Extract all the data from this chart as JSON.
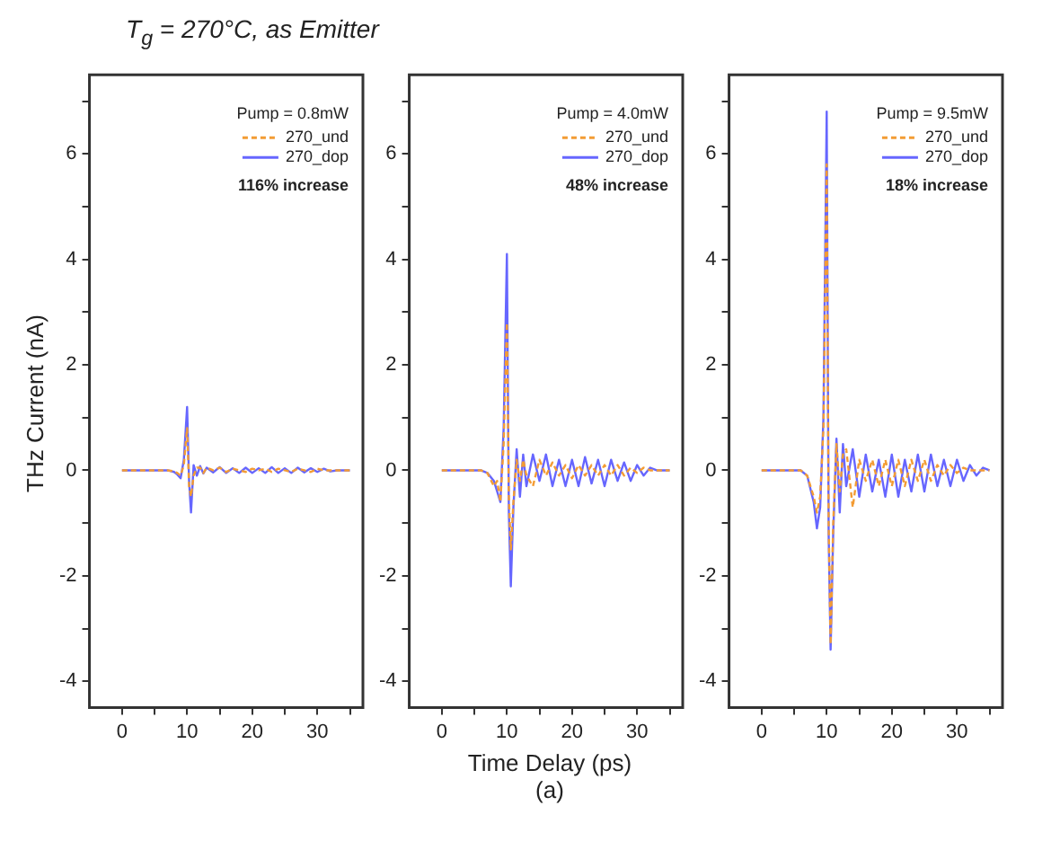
{
  "chart_data": [
    {
      "type": "line",
      "title": "T$_{g}$ = 270°C, as Emitter",
      "ylabel": "THz Current (nA)",
      "legend": "top right",
      "x": [
        0,
        2,
        4,
        6,
        7,
        8,
        8.5,
        9,
        9.5,
        10,
        10.3,
        10.6,
        11,
        11.5,
        12,
        12.5,
        13,
        14,
        15,
        16,
        17,
        18,
        19,
        20,
        21,
        22,
        23,
        24,
        25,
        26,
        27,
        28,
        29,
        30,
        31,
        32,
        33,
        34,
        35
      ],
      "series": [
        {
          "name": "270_und",
          "color": "#f39c34",
          "line_style": "dashed",
          "values": [
            0,
            0,
            0,
            0,
            0,
            -0.02,
            -0.05,
            -0.1,
            0.1,
            0.8,
            -0.3,
            -0.5,
            -0.1,
            0.05,
            0.05,
            -0.05,
            0.05,
            0,
            0.05,
            -0.03,
            0.03,
            0,
            -0.03,
            0.03,
            0,
            0.03,
            -0.03,
            0.03,
            0,
            -0.03,
            0.03,
            0,
            -0.03,
            0.03,
            0,
            0,
            0,
            0,
            0
          ]
        },
        {
          "name": "270_dop",
          "color": "#6666ff",
          "line_style": "solid",
          "values": [
            0,
            0,
            0,
            0,
            0,
            -0.03,
            -0.08,
            -0.15,
            0.2,
            1.2,
            -0.2,
            -0.8,
            0.1,
            -0.1,
            0.08,
            -0.06,
            0.05,
            -0.04,
            0.06,
            -0.05,
            0.04,
            -0.05,
            0.05,
            -0.05,
            0.04,
            -0.05,
            0.06,
            -0.05,
            0.04,
            -0.05,
            0.05,
            -0.04,
            0.04,
            -0.03,
            0.03,
            -0.02,
            0,
            0,
            0
          ]
        }
      ],
      "xlim": [
        -5,
        37
      ],
      "ylim": [
        -4.5,
        7.5
      ],
      "xticks": [
        0,
        {
          "value": 5,
          "label": null
        },
        10,
        {
          "value": 15,
          "label": null
        },
        20,
        {
          "value": 25,
          "label": null
        },
        30,
        {
          "value": 35,
          "label": null
        }
      ],
      "yticks": [
        -4,
        {
          "value": -3,
          "label": null
        },
        -2,
        {
          "value": -1,
          "label": null
        },
        0,
        {
          "value": 1,
          "label": null
        },
        2,
        {
          "value": 3,
          "label": null
        },
        4,
        {
          "value": 5,
          "label": null
        },
        6,
        {
          "value": 7,
          "label": null
        }
      ],
      "annotations": [
        "Pump = 0.8mW",
        "116% increase"
      ]
    },
    {
      "type": "line",
      "xlabel": "Time Delay (ps)",
      "legend": "top right",
      "x": [
        0,
        2,
        4,
        6,
        7,
        8,
        8.5,
        9,
        9.5,
        10,
        10.3,
        10.6,
        11,
        11.5,
        12,
        12.5,
        13,
        14,
        15,
        16,
        17,
        18,
        19,
        20,
        21,
        22,
        23,
        24,
        25,
        26,
        27,
        28,
        29,
        30,
        31,
        32,
        33,
        34,
        35
      ],
      "series": [
        {
          "name": "270_und",
          "color": "#f39c34",
          "line_style": "dashed",
          "values": [
            0,
            0,
            0,
            0,
            -0.05,
            -0.3,
            -0.2,
            -0.6,
            0.5,
            2.8,
            -0.5,
            -1.5,
            -0.6,
            0.2,
            -0.2,
            0.2,
            -0.1,
            -0.3,
            0.2,
            -0.1,
            0.15,
            -0.1,
            0.1,
            -0.15,
            0.1,
            -0.1,
            0.1,
            -0.1,
            0.1,
            -0.1,
            0.1,
            -0.1,
            0.05,
            -0.05,
            0.05,
            0,
            0,
            0,
            0
          ]
        },
        {
          "name": "270_dop",
          "color": "#6666ff",
          "line_style": "solid",
          "values": [
            0,
            0,
            0,
            0,
            -0.05,
            -0.2,
            -0.4,
            -0.6,
            0.8,
            4.1,
            -0.8,
            -2.2,
            -0.7,
            0.4,
            -0.5,
            0.3,
            -0.3,
            0.3,
            -0.2,
            0.3,
            -0.3,
            0.2,
            -0.3,
            0.2,
            -0.3,
            0.25,
            -0.25,
            0.2,
            -0.3,
            0.2,
            -0.2,
            0.15,
            -0.2,
            0.1,
            -0.1,
            0.05,
            0,
            0,
            0
          ]
        }
      ],
      "xlim": [
        -5,
        37
      ],
      "ylim": [
        -4.5,
        7.5
      ],
      "xticks": [
        0,
        {
          "value": 5,
          "label": null
        },
        10,
        {
          "value": 15,
          "label": null
        },
        20,
        {
          "value": 25,
          "label": null
        },
        30,
        {
          "value": 35,
          "label": null
        }
      ],
      "yticks": [
        -4,
        {
          "value": -3,
          "label": null
        },
        -2,
        {
          "value": -1,
          "label": null
        },
        0,
        {
          "value": 1,
          "label": null
        },
        2,
        {
          "value": 3,
          "label": null
        },
        4,
        {
          "value": 5,
          "label": null
        },
        6,
        {
          "value": 7,
          "label": null
        }
      ],
      "annotations": [
        "Pump = 4.0mW",
        "48% increase",
        "(a)"
      ]
    },
    {
      "type": "line",
      "legend": "top right",
      "x": [
        0,
        2,
        4,
        6,
        7,
        8,
        8.5,
        9,
        9.5,
        10,
        10.3,
        10.6,
        11,
        11.5,
        12,
        12.5,
        13,
        14,
        15,
        16,
        17,
        18,
        19,
        20,
        21,
        22,
        23,
        24,
        25,
        26,
        27,
        28,
        29,
        30,
        31,
        32,
        33,
        34,
        35
      ],
      "series": [
        {
          "name": "270_und",
          "color": "#f39c34",
          "line_style": "dashed",
          "values": [
            0,
            0,
            0,
            0,
            -0.1,
            -0.5,
            -0.8,
            -0.5,
            0.8,
            5.8,
            -1.0,
            -3.3,
            -1.0,
            0.5,
            -0.4,
            0.3,
            0.4,
            -0.7,
            0.2,
            -0.2,
            0.2,
            -0.3,
            0.2,
            -0.3,
            0.2,
            -0.3,
            0.2,
            -0.2,
            0.2,
            -0.2,
            0.1,
            -0.1,
            0.1,
            -0.05,
            0.05,
            0,
            0,
            0,
            0
          ]
        },
        {
          "name": "270_dop",
          "color": "#6666ff",
          "line_style": "solid",
          "values": [
            0,
            0,
            0,
            0,
            -0.1,
            -0.6,
            -1.1,
            -0.7,
            1.0,
            6.8,
            -1.2,
            -3.4,
            -1.2,
            0.6,
            -0.8,
            0.5,
            -0.3,
            0.4,
            -0.5,
            0.3,
            -0.4,
            0.2,
            -0.5,
            0.3,
            -0.5,
            0.2,
            -0.4,
            0.3,
            -0.4,
            0.3,
            -0.3,
            0.2,
            -0.3,
            0.2,
            -0.2,
            0.1,
            -0.1,
            0.05,
            0
          ]
        }
      ],
      "xlim": [
        -5,
        37
      ],
      "ylim": [
        -4.5,
        7.5
      ],
      "xticks": [
        0,
        {
          "value": 5,
          "label": null
        },
        10,
        {
          "value": 15,
          "label": null
        },
        20,
        {
          "value": 25,
          "label": null
        },
        30,
        {
          "value": 35,
          "label": null
        }
      ],
      "yticks": [
        -4,
        {
          "value": -3,
          "label": null
        },
        -2,
        {
          "value": -1,
          "label": null
        },
        0,
        {
          "value": 1,
          "label": null
        },
        2,
        {
          "value": 3,
          "label": null
        },
        4,
        {
          "value": 5,
          "label": null
        },
        6,
        {
          "value": 7,
          "label": null
        }
      ],
      "annotations": [
        "Pump = 9.5mW",
        "18% increase"
      ]
    }
  ]
}
